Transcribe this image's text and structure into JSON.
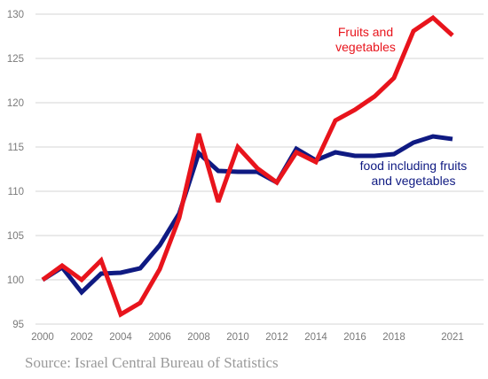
{
  "source": "Source: Israel Central Bureau of Statistics",
  "chart_data": {
    "type": "line",
    "title": "",
    "xlabel": "",
    "ylabel": "",
    "grid": true,
    "ylim": [
      95,
      130
    ],
    "xlim": [
      2000,
      2021.2
    ],
    "y_ticks": [
      95,
      100,
      105,
      110,
      115,
      120,
      125,
      130
    ],
    "x_ticks": [
      {
        "value": 2000,
        "label": "2000"
      },
      {
        "value": 2002,
        "label": "2002"
      },
      {
        "value": 2004,
        "label": "2004"
      },
      {
        "value": 2006,
        "label": "2006"
      },
      {
        "value": 2008,
        "label": "2008"
      },
      {
        "value": 2010,
        "label": "2010"
      },
      {
        "value": 2012,
        "label": "2012"
      },
      {
        "value": 2014,
        "label": "2014"
      },
      {
        "value": 2016,
        "label": "2016"
      },
      {
        "value": 2018,
        "label": "2018"
      },
      {
        "value": 2021,
        "label": "2021"
      }
    ],
    "x": [
      2000,
      2001,
      2002,
      2003,
      2004,
      2005,
      2006,
      2007,
      2008,
      2009,
      2010,
      2011,
      2012,
      2013,
      2014,
      2015,
      2016,
      2017,
      2018,
      2019,
      2020,
      2021
    ],
    "series": [
      {
        "key": "fruits",
        "label_lines": [
          "Fruits and",
          "vegetables"
        ],
        "color": "#e8141c",
        "values": [
          100.0,
          101.6,
          100.0,
          102.2,
          96.1,
          97.4,
          101.2,
          107.0,
          116.5,
          108.8,
          115.0,
          112.6,
          111.0,
          114.4,
          113.3,
          118.0,
          119.2,
          120.7,
          122.8,
          128.1,
          129.6,
          127.6
        ]
      },
      {
        "key": "food",
        "label_lines": [
          "food including fruits",
          "and vegetables"
        ],
        "color": "#0f1a82",
        "values": [
          100.0,
          101.4,
          98.6,
          100.7,
          100.8,
          101.3,
          103.9,
          107.5,
          114.3,
          112.3,
          112.2,
          112.2,
          111.0,
          114.8,
          113.5,
          114.4,
          114.0,
          114.0,
          114.2,
          115.5,
          116.2,
          115.9
        ]
      }
    ]
  }
}
